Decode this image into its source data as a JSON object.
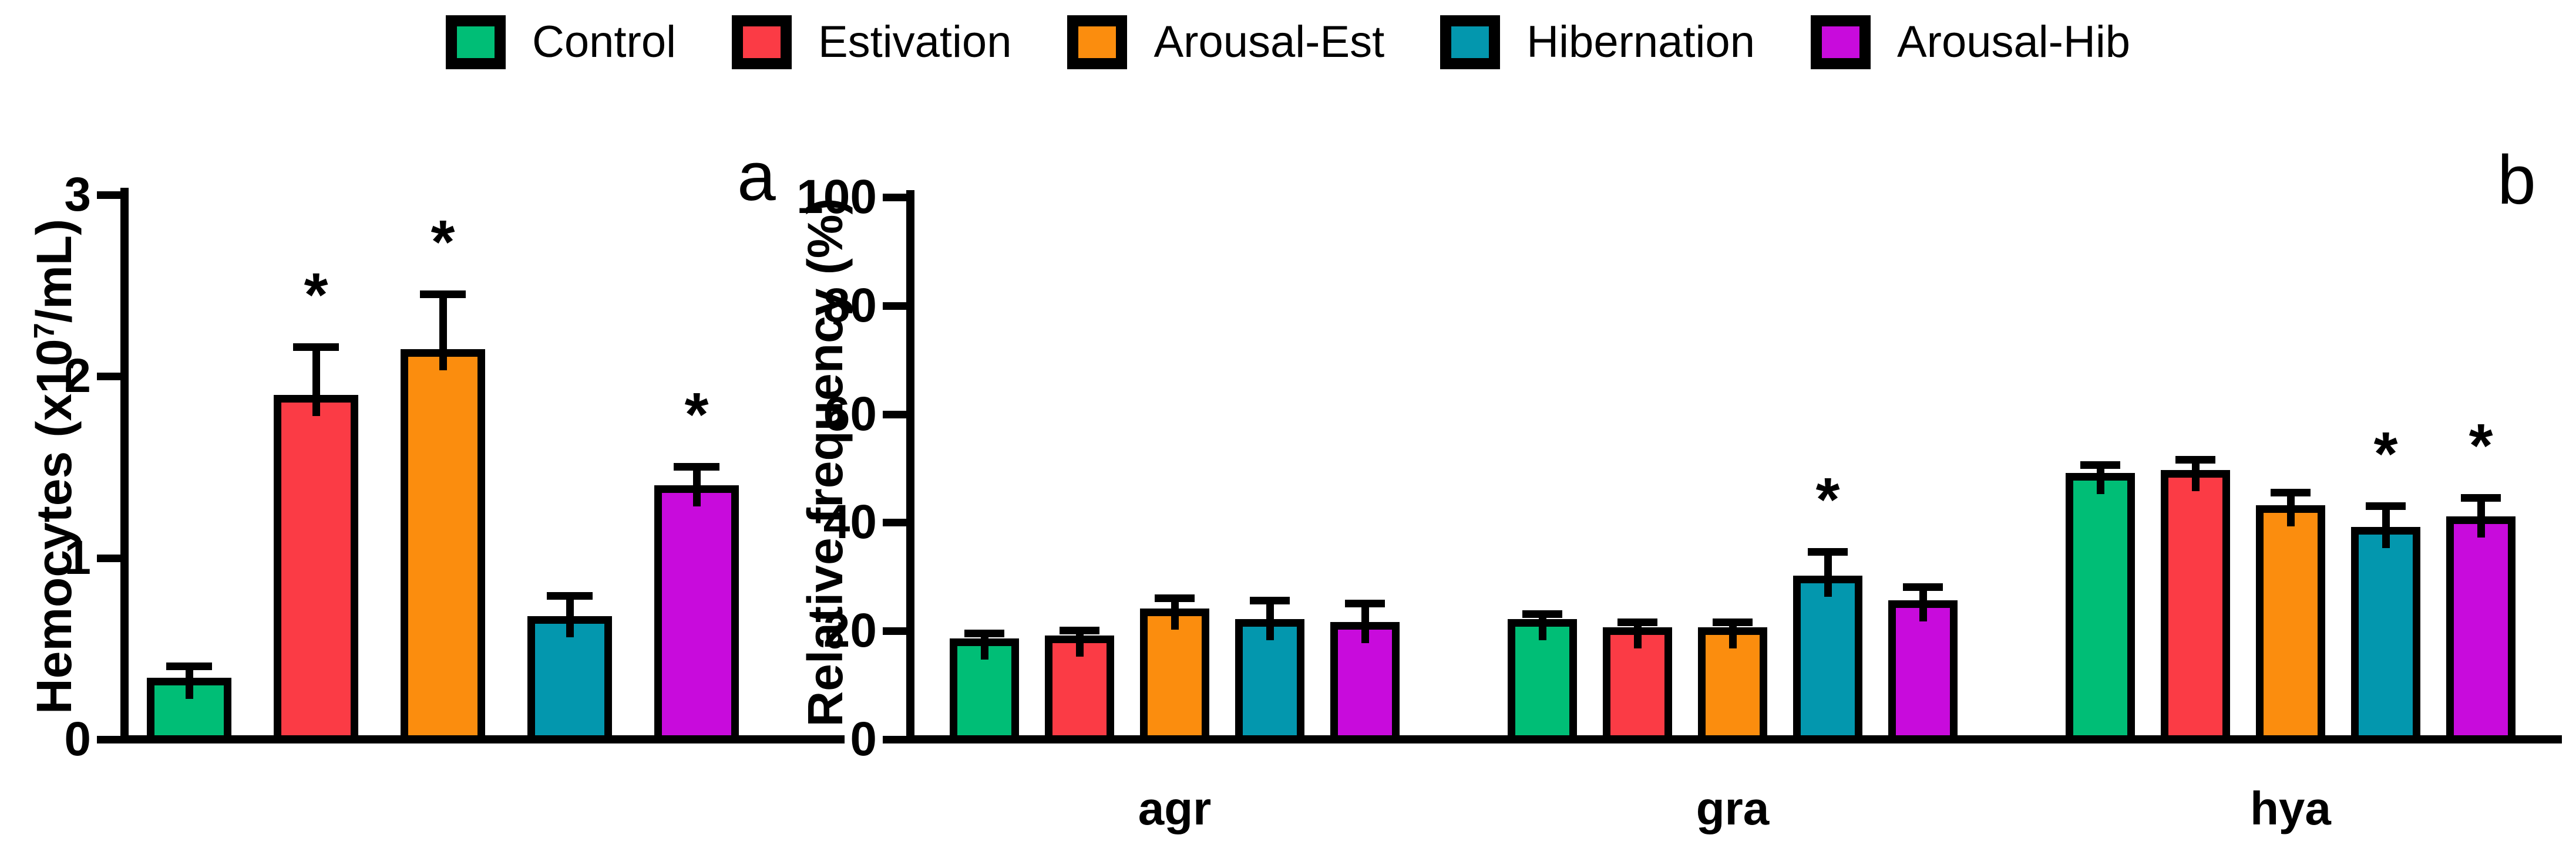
{
  "figure": {
    "background": "#ffffff",
    "significance_marker": "*"
  },
  "legend": {
    "items": [
      {
        "label": "Control",
        "color": "#00BE76"
      },
      {
        "label": "Estivation",
        "color": "#FB3B45"
      },
      {
        "label": "Arousal-Est",
        "color": "#FB8D0E"
      },
      {
        "label": "Hibernation",
        "color": "#0397AE"
      },
      {
        "label": "Arousal-Hib",
        "color": "#C80BDC"
      }
    ]
  },
  "chart_data": [
    {
      "id": "a",
      "type": "bar",
      "panel_label": "a",
      "ylabel_prefix": "Hemocytes (x10",
      "ylabel_sup": "7",
      "ylabel_suffix": "/mL)",
      "ylim": [
        0,
        3
      ],
      "yticks": [
        0,
        1,
        2,
        3
      ],
      "grid": false,
      "legend_position": "top-center",
      "categories": [],
      "series": [
        {
          "name": "Control",
          "color": "#00BE76",
          "value": 0.32,
          "err_top": 0.4,
          "significant": false
        },
        {
          "name": "Estivation",
          "color": "#FB3B45",
          "value": 1.88,
          "err_top": 2.16,
          "significant": true
        },
        {
          "name": "Arousal-Est",
          "color": "#FB8D0E",
          "value": 2.13,
          "err_top": 2.45,
          "significant": true
        },
        {
          "name": "Hibernation",
          "color": "#0397AE",
          "value": 0.66,
          "err_top": 0.79,
          "significant": false
        },
        {
          "name": "Arousal-Hib",
          "color": "#C80BDC",
          "value": 1.38,
          "err_top": 1.5,
          "significant": true
        }
      ]
    },
    {
      "id": "b",
      "type": "grouped-bar",
      "panel_label": "b",
      "ylabel": "Relative frequency (%)",
      "ylim": [
        0,
        100
      ],
      "yticks": [
        0,
        20,
        40,
        60,
        80,
        100
      ],
      "grid": false,
      "categories": [
        "agr",
        "gra",
        "hya"
      ],
      "series": [
        {
          "name": "Control",
          "color": "#00BE76",
          "values": [
            18.0,
            21.5,
            48.5
          ],
          "err_tops": [
            19.5,
            23.0,
            50.5
          ],
          "significant": [
            false,
            false,
            false
          ]
        },
        {
          "name": "Estivation",
          "color": "#FB3B45",
          "values": [
            18.5,
            20.0,
            49.0
          ],
          "err_tops": [
            20.0,
            21.5,
            51.5
          ],
          "significant": [
            false,
            false,
            false
          ]
        },
        {
          "name": "Arousal-Est",
          "color": "#FB8D0E",
          "values": [
            23.5,
            20.0,
            42.5
          ],
          "err_tops": [
            26.0,
            21.5,
            45.5
          ],
          "significant": [
            false,
            false,
            false
          ]
        },
        {
          "name": "Hibernation",
          "color": "#0397AE",
          "values": [
            21.5,
            29.5,
            38.5
          ],
          "err_tops": [
            25.5,
            34.5,
            43.0
          ],
          "significant": [
            false,
            true,
            true
          ]
        },
        {
          "name": "Arousal-Hib",
          "color": "#C80BDC",
          "values": [
            21.0,
            25.0,
            40.5
          ],
          "err_tops": [
            25.0,
            28.0,
            44.5
          ],
          "significant": [
            false,
            false,
            true
          ]
        }
      ]
    }
  ]
}
